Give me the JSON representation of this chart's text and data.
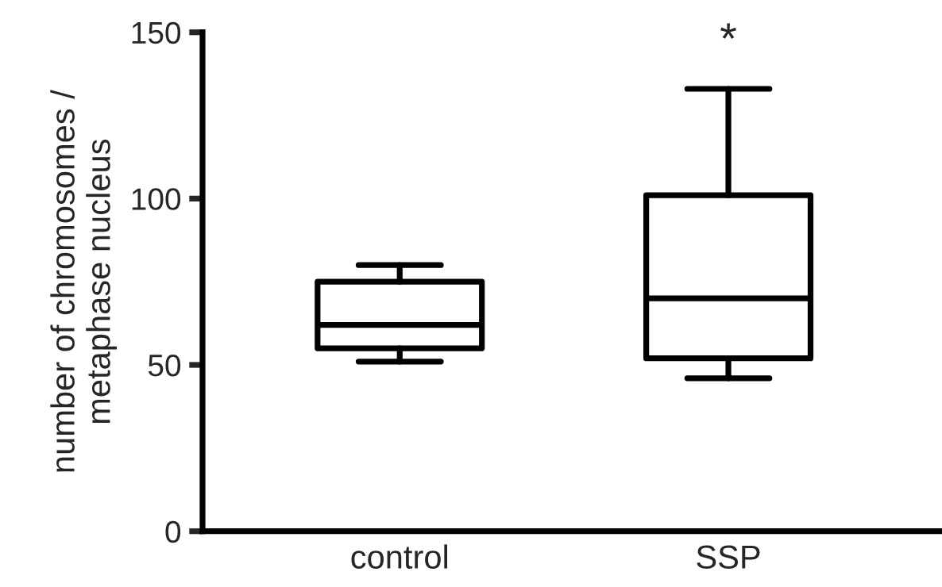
{
  "chart_data": {
    "type": "box",
    "ylabel": "number of chromosomes /\nmetaphase nucleus",
    "categories": [
      "control",
      "SSP"
    ],
    "boxes": [
      {
        "low": 51,
        "q1": 55,
        "median": 62,
        "q3": 75,
        "high": 80
      },
      {
        "low": 46,
        "q1": 52,
        "median": 70,
        "q3": 101,
        "high": 133
      }
    ],
    "color": "#000000",
    "ylim": [
      0,
      150
    ],
    "yticks": [
      0,
      50,
      100,
      150
    ],
    "grid": false,
    "annotations": [
      "*"
    ]
  }
}
